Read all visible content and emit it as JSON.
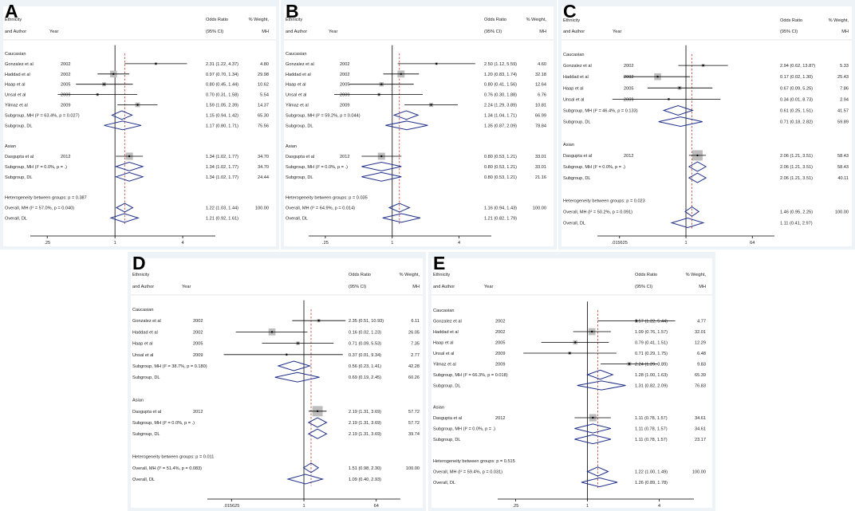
{
  "colors": {
    "panel_bg": "#eef3f8",
    "plot_bg": "#ffffff",
    "diamond": "#1f2f8a",
    "ref_line": "#c0392b",
    "weight_box": "#bdbdbd",
    "axis": "#000000"
  },
  "headers": {
    "col1_line1": "Ethnicity",
    "col1_line2": "and Author",
    "col2": "Year",
    "or_line1": "Odds Ratio",
    "or_line2": "(95% CI)",
    "wt_line1": "% Weight,",
    "wt_line2": "MH"
  },
  "chart_data": [
    {
      "panel": "A",
      "type": "forest",
      "xscale": "log",
      "xlim": [
        0.1768,
        7.8
      ],
      "xticks": [
        {
          "v": 0.25,
          "label": ".25"
        },
        {
          "v": 1,
          "label": "1"
        },
        {
          "v": 4,
          "label": "4"
        }
      ],
      "overall_line": 1.22,
      "rows": [
        {
          "kind": "group",
          "label": "Caucasian"
        },
        {
          "kind": "study",
          "label": "Gonzalez et al",
          "year": "2002",
          "or": 2.31,
          "lo": 1.22,
          "hi": 4.37,
          "ci": "2.31 (1.22, 4.37)",
          "w": "4.80"
        },
        {
          "kind": "study",
          "label": "Haddad et al",
          "year": "2002",
          "or": 0.97,
          "lo": 0.7,
          "hi": 1.34,
          "ci": "0.97 (0.70, 1.34)",
          "w": "29.98"
        },
        {
          "kind": "study",
          "label": "Haap et al",
          "year": "2005",
          "or": 0.8,
          "lo": 0.45,
          "hi": 1.44,
          "ci": "0.80 (0.45, 1.44)",
          "w": "10.62"
        },
        {
          "kind": "study",
          "label": "Unsal et al",
          "year": "2009",
          "or": 0.7,
          "lo": 0.31,
          "hi": 1.58,
          "ci": "0.70 (0.31, 1.58)",
          "w": "5.54"
        },
        {
          "kind": "study",
          "label": "Yilmaz et al",
          "year": "2009",
          "or": 1.59,
          "lo": 1.05,
          "hi": 2.39,
          "ci": "1.59 (1.05, 2.39)",
          "w": "14.37"
        },
        {
          "kind": "sub",
          "label": "Subgroup, MH (I² = 63.4%, p = 0.027)",
          "or": 1.15,
          "lo": 0.94,
          "hi": 1.42,
          "ci": "1.15 (0.94, 1.42)",
          "w": "65.30"
        },
        {
          "kind": "sub",
          "label": "Subgroup, DL",
          "or": 1.17,
          "lo": 0.8,
          "hi": 1.71,
          "ci": "1.17 (0.80, 1.71)",
          "w": "75.56"
        },
        {
          "kind": "blank"
        },
        {
          "kind": "group",
          "label": "Asian"
        },
        {
          "kind": "study",
          "label": "Dasgupta et al",
          "year": "2012",
          "or": 1.34,
          "lo": 1.02,
          "hi": 1.77,
          "ci": "1.34 (1.02, 1.77)",
          "w": "34.70"
        },
        {
          "kind": "sub",
          "label": "Subgroup, MH (I² = 0.0%, p = .)",
          "or": 1.34,
          "lo": 1.02,
          "hi": 1.77,
          "ci": "1.34 (1.02, 1.77)",
          "w": "34.70"
        },
        {
          "kind": "sub",
          "label": "Subgroup, DL",
          "or": 1.34,
          "lo": 1.02,
          "hi": 1.77,
          "ci": "1.34 (1.02, 1.77)",
          "w": "24.44"
        },
        {
          "kind": "blank"
        },
        {
          "kind": "text",
          "label": "Heterogeneity between groups: p = 0.387"
        },
        {
          "kind": "sub",
          "label": "Overall, MH (I² = 57.0%, p = 0.040)",
          "or": 1.22,
          "lo": 1.03,
          "hi": 1.44,
          "ci": "1.22 (1.03, 1.44)",
          "w": "100.00"
        },
        {
          "kind": "sub",
          "label": "Overall, DL",
          "or": 1.21,
          "lo": 0.92,
          "hi": 1.61,
          "ci": "1.21 (0.92, 1.61)",
          "w": ""
        }
      ]
    },
    {
      "panel": "B",
      "type": "forest",
      "xscale": "log",
      "xlim": [
        0.1768,
        7.8
      ],
      "xticks": [
        {
          "v": 0.25,
          "label": ".25"
        },
        {
          "v": 1,
          "label": "1"
        },
        {
          "v": 4,
          "label": "4"
        }
      ],
      "overall_line": 1.16,
      "rows": [
        {
          "kind": "group",
          "label": "Caucasian"
        },
        {
          "kind": "study",
          "label": "Gonzalez et al",
          "year": "2002",
          "or": 2.5,
          "lo": 1.12,
          "hi": 5.59,
          "ci": "2.50 (1.12, 5.59)",
          "w": "4.60"
        },
        {
          "kind": "study",
          "label": "Haddad et al",
          "year": "2002",
          "or": 1.2,
          "lo": 0.83,
          "hi": 1.74,
          "ci": "1.20 (0.83, 1.74)",
          "w": "32.18"
        },
        {
          "kind": "study",
          "label": "Haap et al",
          "year": "2005",
          "or": 0.8,
          "lo": 0.41,
          "hi": 1.56,
          "ci": "0.80 (0.41, 1.56)",
          "w": "12.64"
        },
        {
          "kind": "study",
          "label": "Unsal et al",
          "year": "2009",
          "or": 0.76,
          "lo": 0.3,
          "hi": 1.88,
          "ci": "0.76 (0.30, 1.88)",
          "w": "6.76"
        },
        {
          "kind": "study",
          "label": "Yilmaz et al",
          "year": "2009",
          "or": 2.24,
          "lo": 1.29,
          "hi": 3.89,
          "ci": "2.24 (1.29, 3.89)",
          "w": "10.81"
        },
        {
          "kind": "sub",
          "label": "Subgroup, MH (I² = 59.2%, p = 0.044)",
          "or": 1.34,
          "lo": 1.04,
          "hi": 1.71,
          "ci": "1.34 (1.04, 1.71)",
          "w": "66.99"
        },
        {
          "kind": "sub",
          "label": "Subgroup, DL",
          "or": 1.35,
          "lo": 0.87,
          "hi": 2.09,
          "ci": "1.35 (0.87, 2.09)",
          "w": "78.84"
        },
        {
          "kind": "blank"
        },
        {
          "kind": "group",
          "label": "Asian"
        },
        {
          "kind": "study",
          "label": "Dasgupta et al",
          "year": "2012",
          "or": 0.8,
          "lo": 0.53,
          "hi": 1.21,
          "ci": "0.80 (0.53, 1.21)",
          "w": "33.01"
        },
        {
          "kind": "sub",
          "label": "Subgroup, MH (I² = 0.0%, p = .)",
          "or": 0.8,
          "lo": 0.53,
          "hi": 1.21,
          "ci": "0.80 (0.53, 1.21)",
          "w": "33.01"
        },
        {
          "kind": "sub",
          "label": "Subgroup, DL",
          "or": 0.8,
          "lo": 0.53,
          "hi": 1.21,
          "ci": "0.80 (0.53, 1.21)",
          "w": "21.16"
        },
        {
          "kind": "blank"
        },
        {
          "kind": "text",
          "label": "Heterogeneity between groups: p = 0.035"
        },
        {
          "kind": "sub",
          "label": "Overall, MH (I² = 64.9%, p = 0.014)",
          "or": 1.16,
          "lo": 0.94,
          "hi": 1.43,
          "ci": "1.16 (0.94, 1.43)",
          "w": "100.00"
        },
        {
          "kind": "sub",
          "label": "Overall, DL",
          "or": 1.21,
          "lo": 0.82,
          "hi": 1.79,
          "ci": "1.21 (0.82, 1.79)",
          "w": ""
        }
      ]
    },
    {
      "panel": "C",
      "type": "forest",
      "xscale": "log",
      "xlim": [
        0.0039,
        256
      ],
      "xticks": [
        {
          "v": 0.015625,
          "label": ".015625"
        },
        {
          "v": 1,
          "label": "1"
        },
        {
          "v": 64,
          "label": "64"
        }
      ],
      "overall_line": 1.46,
      "rows": [
        {
          "kind": "group",
          "label": "Caucasian"
        },
        {
          "kind": "study",
          "label": "Gonzalez et al",
          "year": "2002",
          "or": 2.94,
          "lo": 0.62,
          "hi": 13.87,
          "ci": "2.94 (0.62, 13.87)",
          "w": "5.33"
        },
        {
          "kind": "study",
          "label": "Haddad et al",
          "year": "2002",
          "or": 0.17,
          "lo": 0.02,
          "hi": 1.3,
          "ci": "0.17 (0.02, 1.30)",
          "w": "25.43"
        },
        {
          "kind": "study",
          "label": "Haap et al",
          "year": "2005",
          "or": 0.67,
          "lo": 0.09,
          "hi": 5.25,
          "ci": "0.67 (0.09, 5.25)",
          "w": "7.86"
        },
        {
          "kind": "study",
          "label": "Unsal et al",
          "year": "2009",
          "or": 0.34,
          "lo": 0.01,
          "hi": 8.73,
          "ci": "0.34 (0.01, 8.73)",
          "w": "2.94"
        },
        {
          "kind": "sub",
          "label": "Subgroup, MH (I² = 46.4%, p = 0.133)",
          "or": 0.61,
          "lo": 0.25,
          "hi": 1.51,
          "ci": "0.61 (0.25, 1.51)",
          "w": "41.57"
        },
        {
          "kind": "sub",
          "label": "Subgroup, DL",
          "or": 0.71,
          "lo": 0.18,
          "hi": 2.82,
          "ci": "0.71 (0.18, 2.82)",
          "w": "59.89"
        },
        {
          "kind": "blank"
        },
        {
          "kind": "group",
          "label": "Asian"
        },
        {
          "kind": "study",
          "label": "Dasgupta et al",
          "year": "2012",
          "or": 2.06,
          "lo": 1.21,
          "hi": 3.51,
          "ci": "2.06 (1.21, 3.51)",
          "w": "58.43"
        },
        {
          "kind": "sub",
          "label": "Subgroup, MH (I² = 0.0%, p = .)",
          "or": 2.06,
          "lo": 1.21,
          "hi": 3.51,
          "ci": "2.06 (1.21, 3.51)",
          "w": "58.43"
        },
        {
          "kind": "sub",
          "label": "Subgroup, DL",
          "or": 2.06,
          "lo": 1.21,
          "hi": 3.51,
          "ci": "2.06 (1.21, 3.51)",
          "w": "40.11"
        },
        {
          "kind": "blank"
        },
        {
          "kind": "text",
          "label": "Heterogeneity between groups: p = 0.023"
        },
        {
          "kind": "sub",
          "label": "Overall, MH (I² = 50.2%, p = 0.091)",
          "or": 1.46,
          "lo": 0.95,
          "hi": 2.25,
          "ci": "1.46 (0.95, 2.25)",
          "w": "100.00"
        },
        {
          "kind": "sub",
          "label": "Overall, DL",
          "or": 1.11,
          "lo": 0.41,
          "hi": 2.97,
          "ci": "1.11 (0.41, 2.97)",
          "w": ""
        }
      ]
    },
    {
      "panel": "D",
      "type": "forest",
      "xscale": "log",
      "xlim": [
        0.0039,
        256
      ],
      "xticks": [
        {
          "v": 0.015625,
          "label": ".015625"
        },
        {
          "v": 1,
          "label": "1"
        },
        {
          "v": 64,
          "label": "64"
        }
      ],
      "overall_line": 1.51,
      "rows": [
        {
          "kind": "group",
          "label": "Caucasian"
        },
        {
          "kind": "study",
          "label": "Gonzalez et al",
          "year": "2002",
          "or": 2.35,
          "lo": 0.51,
          "hi": 10.93,
          "ci": "2.35 (0.51, 10.93)",
          "w": "6.11"
        },
        {
          "kind": "study",
          "label": "Haddad et al",
          "year": "2002",
          "or": 0.16,
          "lo": 0.02,
          "hi": 1.23,
          "ci": "0.16 (0.02, 1.23)",
          "w": "26.05"
        },
        {
          "kind": "study",
          "label": "Haap et al",
          "year": "2005",
          "or": 0.71,
          "lo": 0.09,
          "hi": 5.53,
          "ci": "0.71 (0.09, 5.53)",
          "w": "7.35"
        },
        {
          "kind": "study",
          "label": "Unsal et al",
          "year": "2009",
          "or": 0.37,
          "lo": 0.01,
          "hi": 9.34,
          "ci": "0.37 (0.01, 9.34)",
          "w": "2.77"
        },
        {
          "kind": "sub",
          "label": "Subgroup, MH (I² = 38.7%, p = 0.180)",
          "or": 0.56,
          "lo": 0.23,
          "hi": 1.41,
          "ci": "0.56 (0.23, 1.41)",
          "w": "42.28"
        },
        {
          "kind": "sub",
          "label": "Subgroup, DL",
          "or": 0.69,
          "lo": 0.19,
          "hi": 2.45,
          "ci": "0.69 (0.19, 2.45)",
          "w": "60.26"
        },
        {
          "kind": "blank"
        },
        {
          "kind": "group",
          "label": "Asian"
        },
        {
          "kind": "study",
          "label": "Dasgupta et al",
          "year": "2012",
          "or": 2.19,
          "lo": 1.31,
          "hi": 3.69,
          "ci": "2.19 (1.31, 3.69)",
          "w": "57.72"
        },
        {
          "kind": "sub",
          "label": "Subgroup, MH (I² = 0.0%, p = .)",
          "or": 2.19,
          "lo": 1.31,
          "hi": 3.69,
          "ci": "2.19 (1.31, 3.69)",
          "w": "57.72"
        },
        {
          "kind": "sub",
          "label": "Subgroup, DL",
          "or": 2.19,
          "lo": 1.31,
          "hi": 3.69,
          "ci": "2.19 (1.31, 3.69)",
          "w": "39.74"
        },
        {
          "kind": "blank"
        },
        {
          "kind": "text",
          "label": "Heterogeneity between groups: p = 0.011"
        },
        {
          "kind": "sub",
          "label": "Overall, MH (I² = 51.4%, p = 0.083)",
          "or": 1.51,
          "lo": 0.98,
          "hi": 2.3,
          "ci": "1.51 (0.98, 2.30)",
          "w": "100.00"
        },
        {
          "kind": "sub",
          "label": "Overall, DL",
          "or": 1.09,
          "lo": 0.4,
          "hi": 2.93,
          "ci": "1.09 (0.40, 2.93)",
          "w": ""
        }
      ]
    },
    {
      "panel": "E",
      "type": "forest",
      "xscale": "log",
      "xlim": [
        0.1768,
        7.8
      ],
      "xticks": [
        {
          "v": 0.25,
          "label": ".25"
        },
        {
          "v": 1,
          "label": "1"
        },
        {
          "v": 4,
          "label": "4"
        }
      ],
      "overall_line": 1.22,
      "rows": [
        {
          "kind": "group",
          "label": "Caucasian"
        },
        {
          "kind": "study",
          "label": "Gonzalez et al",
          "year": "2002",
          "or": 2.57,
          "lo": 1.22,
          "hi": 5.44,
          "ci": "2.57 (1.22, 5.44)",
          "w": "4.77"
        },
        {
          "kind": "study",
          "label": "Haddad et al",
          "year": "2002",
          "or": 1.09,
          "lo": 0.76,
          "hi": 1.57,
          "ci": "1.09 (0.76, 1.57)",
          "w": "32.01"
        },
        {
          "kind": "study",
          "label": "Haap et al",
          "year": "2005",
          "or": 0.79,
          "lo": 0.41,
          "hi": 1.51,
          "ci": "0.79 (0.41, 1.51)",
          "w": "12.29"
        },
        {
          "kind": "study",
          "label": "Unsal et al",
          "year": "2009",
          "or": 0.71,
          "lo": 0.29,
          "hi": 1.75,
          "ci": "0.71 (0.29, 1.75)",
          "w": "6.48"
        },
        {
          "kind": "study",
          "label": "Yilmaz et al",
          "year": "2009",
          "or": 2.24,
          "lo": 1.29,
          "hi": 3.89,
          "ci": "2.24 (1.29, 3.89)",
          "w": "9.83"
        },
        {
          "kind": "sub",
          "label": "Subgroup, MH (I² = 66.3%, p = 0.018)",
          "or": 1.28,
          "lo": 1.0,
          "hi": 1.63,
          "ci": "1.28 (1.00, 1.63)",
          "w": "65.39"
        },
        {
          "kind": "sub",
          "label": "Subgroup, DL",
          "or": 1.31,
          "lo": 0.82,
          "hi": 2.09,
          "ci": "1.31 (0.82, 2.09)",
          "w": "76.83"
        },
        {
          "kind": "blank"
        },
        {
          "kind": "group",
          "label": "Asian"
        },
        {
          "kind": "study",
          "label": "Dasgupta et al",
          "year": "2012",
          "or": 1.11,
          "lo": 0.78,
          "hi": 1.57,
          "ci": "1.11 (0.78, 1.57)",
          "w": "34.61"
        },
        {
          "kind": "sub",
          "label": "Subgroup, MH (I² = 0.0%, p = .)",
          "or": 1.11,
          "lo": 0.78,
          "hi": 1.57,
          "ci": "1.11 (0.78, 1.57)",
          "w": "34.61"
        },
        {
          "kind": "sub",
          "label": "Subgroup, DL",
          "or": 1.11,
          "lo": 0.78,
          "hi": 1.57,
          "ci": "1.11 (0.78, 1.57)",
          "w": "23.17"
        },
        {
          "kind": "blank"
        },
        {
          "kind": "text",
          "label": "Heterogeneity between groups: p = 0.515"
        },
        {
          "kind": "sub",
          "label": "Overall, MH (I² = 59.4%, p = 0.031)",
          "or": 1.22,
          "lo": 1.0,
          "hi": 1.49,
          "ci": "1.22 (1.00, 1.49)",
          "w": "100.00"
        },
        {
          "kind": "sub",
          "label": "Overall, DL",
          "or": 1.26,
          "lo": 0.89,
          "hi": 1.78,
          "ci": "1.26 (0.89, 1.78)",
          "w": ""
        }
      ]
    }
  ]
}
